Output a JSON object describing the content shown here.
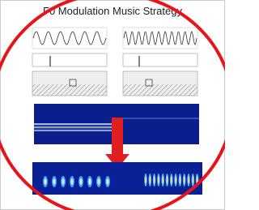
{
  "figure": {
    "title": "F0 Modulation Music Strategy"
  }
}
